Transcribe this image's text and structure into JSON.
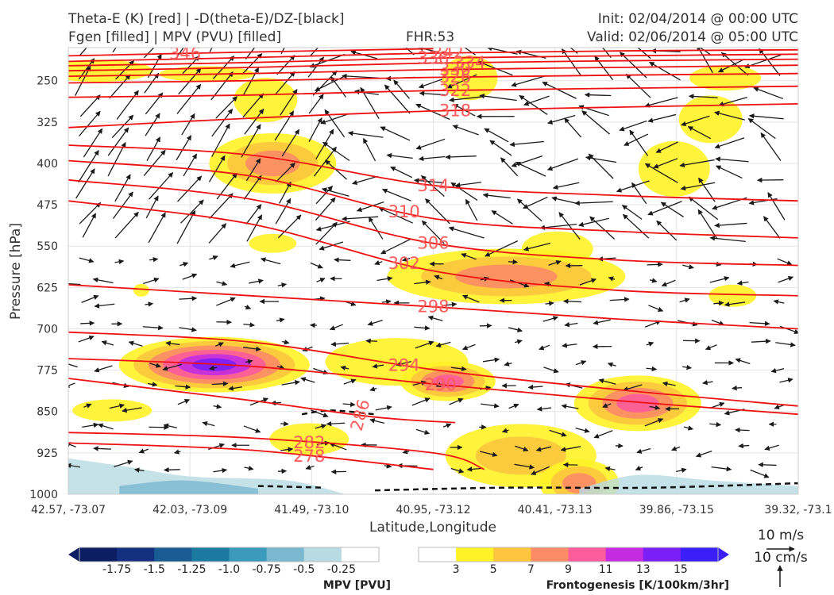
{
  "header": {
    "title_line1": "Theta-E (K) [red] | -D(theta-E)/DZ-[black]",
    "title_line2": "Fgen [filled] | MPV (PVU) [filled]",
    "fhr": "FHR:53",
    "init": "Init: 02/04/2014 @ 00:00 UTC",
    "valid": "Valid: 02/06/2014 @ 05:00 UTC"
  },
  "chart_data": {
    "type": "cross-section",
    "title": "Theta-E (K) [red] | -D(theta-E)/DZ-[black]",
    "ylabel": "Pressure [hPa]",
    "xlabel": "Latitude,Longitude",
    "y_scale": "inverted",
    "ylim": [
      1000,
      190
    ],
    "yticks": [
      "250",
      "325",
      "400",
      "475",
      "550",
      "625",
      "700",
      "775",
      "850",
      "925",
      "1000"
    ],
    "xticks": [
      "42.57, -73.07",
      "42.03, -73.09",
      "41.49, -73.10",
      "40.95, -73.12",
      "40.41, -73.13",
      "39.86, -73.15",
      "39.32, -73.1"
    ],
    "grid": true,
    "theta_e_contours": [
      {
        "value": "346",
        "points": [
          [
            0.0,
            205
          ],
          [
            0.25,
            198
          ],
          [
            0.5,
            192
          ]
        ]
      },
      {
        "value": "342",
        "points": [
          [
            0.0,
            215
          ],
          [
            0.25,
            208
          ],
          [
            0.5,
            200
          ],
          [
            0.75,
            196
          ],
          [
            1.0,
            194
          ]
        ]
      },
      {
        "value": "338",
        "points": [
          [
            0.0,
            223
          ],
          [
            0.25,
            217
          ],
          [
            0.5,
            209
          ],
          [
            0.75,
            205
          ],
          [
            1.0,
            202
          ]
        ]
      },
      {
        "value": "334",
        "points": [
          [
            0.0,
            232
          ],
          [
            0.25,
            226
          ],
          [
            0.5,
            218
          ],
          [
            0.75,
            214
          ],
          [
            1.0,
            211
          ]
        ]
      },
      {
        "value": "330",
        "points": [
          [
            0.0,
            242
          ],
          [
            0.25,
            237
          ],
          [
            0.5,
            230
          ],
          [
            0.75,
            226
          ],
          [
            1.0,
            222
          ]
        ]
      },
      {
        "value": "326",
        "points": [
          [
            0.0,
            254
          ],
          [
            0.25,
            250
          ],
          [
            0.5,
            244
          ],
          [
            0.75,
            240
          ],
          [
            1.0,
            237
          ]
        ]
      },
      {
        "value": "322",
        "points": [
          [
            0.0,
            280
          ],
          [
            0.25,
            276
          ],
          [
            0.5,
            268
          ],
          [
            0.75,
            264
          ],
          [
            1.0,
            260
          ]
        ]
      },
      {
        "value": "318",
        "points": [
          [
            0.0,
            335
          ],
          [
            0.25,
            318
          ],
          [
            0.5,
            305
          ],
          [
            0.75,
            298
          ],
          [
            1.0,
            292
          ]
        ]
      },
      {
        "value": "314",
        "points": [
          [
            0.0,
            367
          ],
          [
            0.25,
            385
          ],
          [
            0.5,
            440
          ],
          [
            0.75,
            458
          ],
          [
            1.0,
            468
          ]
        ]
      },
      {
        "value": "310",
        "points": [
          [
            0.0,
            395
          ],
          [
            0.25,
            423
          ],
          [
            0.5,
            500
          ],
          [
            0.75,
            523
          ],
          [
            1.0,
            535
          ]
        ]
      },
      {
        "value": "306",
        "points": [
          [
            0.0,
            430
          ],
          [
            0.25,
            465
          ],
          [
            0.5,
            545
          ],
          [
            0.75,
            575
          ],
          [
            1.0,
            585
          ]
        ]
      },
      {
        "value": "302",
        "points": [
          [
            0.0,
            468
          ],
          [
            0.25,
            510
          ],
          [
            0.5,
            595
          ],
          [
            0.75,
            630
          ],
          [
            1.0,
            640
          ]
        ]
      },
      {
        "value": "298",
        "points": [
          [
            0.0,
            620
          ],
          [
            0.25,
            640
          ],
          [
            0.5,
            660
          ],
          [
            0.75,
            682
          ],
          [
            1.0,
            700
          ]
        ]
      },
      {
        "value": "294",
        "points": [
          [
            0.0,
            706
          ],
          [
            0.25,
            724
          ],
          [
            0.5,
            774
          ],
          [
            0.75,
            810
          ],
          [
            1.0,
            840
          ]
        ]
      },
      {
        "value": "290",
        "points": [
          [
            0.0,
            754
          ],
          [
            0.25,
            768
          ],
          [
            0.5,
            800
          ],
          [
            0.75,
            830
          ],
          [
            1.0,
            855
          ]
        ]
      },
      {
        "value": "286",
        "points": [
          [
            0.0,
            790
          ],
          [
            0.25,
            830
          ],
          [
            0.42,
            860
          ],
          [
            0.53,
            870
          ]
        ]
      },
      {
        "value": "282",
        "points": [
          [
            0.0,
            888
          ],
          [
            0.25,
            898
          ],
          [
            0.5,
            925
          ],
          [
            0.57,
            955
          ]
        ]
      },
      {
        "value": "278",
        "points": [
          [
            0.0,
            907
          ],
          [
            0.25,
            920
          ],
          [
            0.5,
            955
          ]
        ]
      }
    ],
    "fgen_colorbar": {
      "title": "Frontogenesis [K/100km/3hr]",
      "ticks": [
        "3",
        "5",
        "7",
        "9",
        "11",
        "13",
        "15"
      ],
      "colors": [
        "#ffffff",
        "#fff227",
        "#fcc53d",
        "#fc8c65",
        "#fc5c9c",
        "#c32ce0",
        "#7a1ff5",
        "#3a1ff8"
      ]
    },
    "mpv_colorbar": {
      "title": "MPV [PVU]",
      "ticks": [
        "-1.75",
        "-1.5",
        "-1.25",
        "-1.0",
        "-0.75",
        "-0.5",
        "-0.25"
      ],
      "colors": [
        "#0b1d63",
        "#14317f",
        "#185c93",
        "#1a7aa0",
        "#3a9bbd",
        "#7ab8cf",
        "#b8dbe3",
        "#ffffff"
      ]
    },
    "reference_vectors": {
      "horizontal": "10 m/s",
      "vertical": "10 cm/s"
    }
  }
}
